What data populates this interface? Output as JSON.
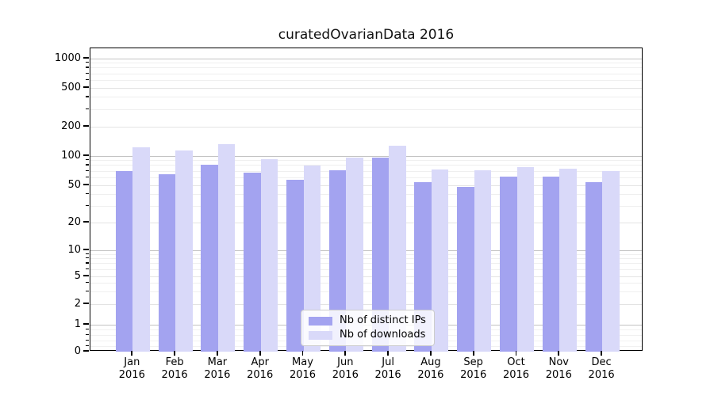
{
  "chart_data": {
    "type": "bar",
    "title": "curatedOvarianData 2016",
    "months": [
      "Jan",
      "Feb",
      "Mar",
      "Apr",
      "May",
      "Jun",
      "Jul",
      "Aug",
      "Sep",
      "Oct",
      "Nov",
      "Dec"
    ],
    "year": "2016",
    "series": [
      {
        "name": "Nb of distinct IPs",
        "color": "#a3a3f0",
        "values": [
          70,
          65,
          81,
          67,
          57,
          72,
          97,
          54,
          48,
          61,
          62,
          54
        ]
      },
      {
        "name": "Nb of downloads",
        "color": "#d9d9f9",
        "values": [
          122,
          115,
          133,
          93,
          80,
          96,
          127,
          73,
          72,
          77,
          74,
          70
        ]
      }
    ],
    "yticks": [
      0,
      1,
      2,
      5,
      10,
      20,
      50,
      100,
      200,
      500,
      1000
    ],
    "yscale": "symlog",
    "ylim": [
      0,
      1300
    ],
    "grid": "on",
    "legend_position": "bottom-center"
  }
}
